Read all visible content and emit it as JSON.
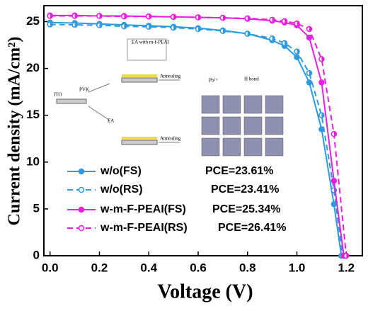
{
  "chart_data": {
    "type": "line",
    "xlabel": "Voltage (V)",
    "ylabel": "Current density (mA/cm²)",
    "xlim": [
      -0.025,
      1.265
    ],
    "ylim": [
      0,
      26.7
    ],
    "xticks": [
      {
        "value": 0,
        "label": "0.0"
      },
      0.2,
      0.4,
      0.6,
      0.8,
      {
        "value": 1,
        "label": "1.0"
      },
      1.2
    ],
    "yticks": [
      0,
      5,
      10,
      15,
      20,
      25
    ],
    "series": [
      {
        "name": "w/o(FS)",
        "color": "#2e9be0",
        "dash": false,
        "marker_fill": "full",
        "x": [
          0,
          0.1,
          0.2,
          0.3,
          0.4,
          0.5,
          0.6,
          0.7,
          0.8,
          0.9,
          0.95,
          1.0,
          1.05,
          1.1,
          1.15,
          1.18
        ],
        "values": [
          24.9,
          24.85,
          24.75,
          24.65,
          24.55,
          24.45,
          24.3,
          24.05,
          23.7,
          23.0,
          22.4,
          21.2,
          18.5,
          13.5,
          5.5,
          0
        ]
      },
      {
        "name": "w/o(RS)",
        "color": "#2e9be0",
        "dash": true,
        "marker_fill": "half",
        "x": [
          0,
          0.1,
          0.2,
          0.3,
          0.4,
          0.5,
          0.6,
          0.7,
          0.8,
          0.9,
          0.95,
          1.0,
          1.05,
          1.1,
          1.15,
          1.185
        ],
        "values": [
          24.7,
          24.65,
          24.6,
          24.5,
          24.45,
          24.35,
          24.2,
          24.0,
          23.7,
          23.2,
          22.7,
          21.8,
          19.5,
          15.0,
          7.0,
          0
        ]
      },
      {
        "name": "w-m-F-PEAI(FS)",
        "color": "#e81ee0",
        "dash": false,
        "marker_fill": "full",
        "x": [
          0,
          0.1,
          0.2,
          0.3,
          0.4,
          0.5,
          0.6,
          0.7,
          0.8,
          0.9,
          0.95,
          1.0,
          1.05,
          1.1,
          1.15,
          1.19
        ],
        "values": [
          25.65,
          25.65,
          25.6,
          25.6,
          25.55,
          25.5,
          25.45,
          25.4,
          25.3,
          25.1,
          24.9,
          24.6,
          23.3,
          18.5,
          8.0,
          0
        ]
      },
      {
        "name": "w-m-F-PEAI(RS)",
        "color": "#e81ee0",
        "dash": true,
        "marker_fill": "half",
        "x": [
          0,
          0.1,
          0.2,
          0.3,
          0.4,
          0.5,
          0.6,
          0.7,
          0.8,
          0.9,
          0.95,
          1.0,
          1.05,
          1.1,
          1.15,
          1.2
        ],
        "values": [
          25.6,
          25.6,
          25.6,
          25.55,
          25.55,
          25.5,
          25.45,
          25.4,
          25.35,
          25.2,
          25.05,
          24.8,
          24.2,
          21.0,
          13.0,
          0
        ]
      }
    ],
    "annotations": [
      "PCE=23.61%",
      "PCE=23.41%",
      "PCE=25.34%",
      "PCE=26.41%"
    ],
    "inset_labels": [
      "EA with m-f-PEAI",
      "PVK",
      "ITO",
      "Annealing",
      "EA",
      "Annealing",
      "H bond",
      "Pb²⁺"
    ]
  }
}
